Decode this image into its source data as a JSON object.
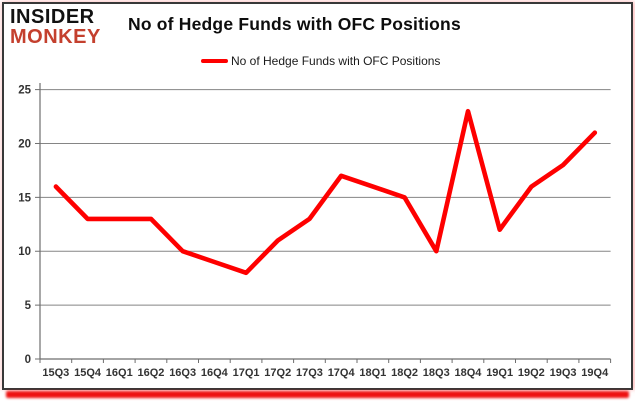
{
  "brand": {
    "line1": "INSIDER",
    "line2": "MONKEY"
  },
  "header": {
    "title": "No of Hedge Funds with OFC Positions"
  },
  "legend": {
    "label": "No of Hedge Funds with OFC Positions"
  },
  "colors": {
    "series": "#fe0000",
    "logo_black": "#111111",
    "logo_red": "#c4402e",
    "grid": "#858585",
    "axis": "#6e6e6e",
    "tick_text": "#333333",
    "glow": "#ee1111"
  },
  "chart_data": {
    "type": "line",
    "title": "No of Hedge Funds with OFC Positions",
    "series_name": "No of Hedge Funds with OFC Positions",
    "categories": [
      "15Q3",
      "15Q4",
      "16Q1",
      "16Q2",
      "16Q3",
      "16Q4",
      "17Q1",
      "17Q2",
      "17Q3",
      "17Q4",
      "18Q1",
      "18Q2",
      "18Q3",
      "18Q4",
      "19Q1",
      "19Q2",
      "19Q3",
      "19Q4"
    ],
    "values": [
      16,
      13,
      13,
      13,
      10,
      9,
      8,
      11,
      13,
      17,
      16,
      15,
      10,
      23,
      12,
      16,
      18,
      21
    ],
    "xlabel": "",
    "ylabel": "",
    "ylim": [
      0,
      25
    ],
    "ytick_step": 5,
    "grid": true,
    "legend_position": "top-center"
  }
}
